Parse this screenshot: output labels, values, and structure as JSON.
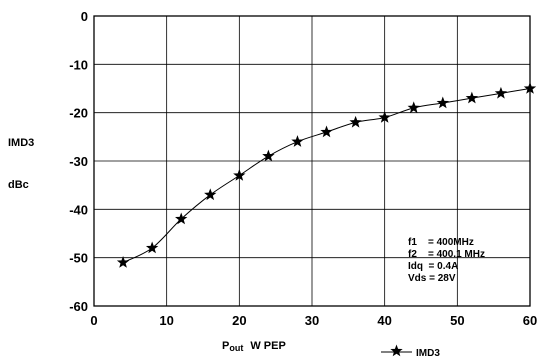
{
  "chart_data": {
    "type": "line",
    "title": "",
    "ylabel_line1": "IMD3",
    "ylabel_line2": "dBc",
    "xlabel_main": "P",
    "xlabel_sub": "out",
    "xlabel_unit": "W PEP",
    "xlim": [
      0,
      60
    ],
    "ylim": [
      -60,
      0
    ],
    "xticks": [
      0,
      10,
      20,
      30,
      40,
      50,
      60
    ],
    "yticks": [
      0,
      -10,
      -20,
      -30,
      -40,
      -50,
      -60
    ],
    "grid": true,
    "legend_position": "bottom-right",
    "series": [
      {
        "name": "IMD3",
        "color": "#000000",
        "marker": "star",
        "x": [
          4,
          8,
          12,
          16,
          20,
          24,
          28,
          32,
          36,
          40,
          44,
          48,
          52,
          56,
          60
        ],
        "y": [
          -51,
          -48,
          -42,
          -37,
          -33,
          -29,
          -26,
          -24,
          -22,
          -21,
          -19,
          -18,
          -17,
          -16,
          -15
        ]
      }
    ],
    "annotations": [
      "f1    = 400MHz",
      "f2    = 400.1 MHz",
      "Idq  = 0.4A",
      "Vds = 28V"
    ]
  }
}
